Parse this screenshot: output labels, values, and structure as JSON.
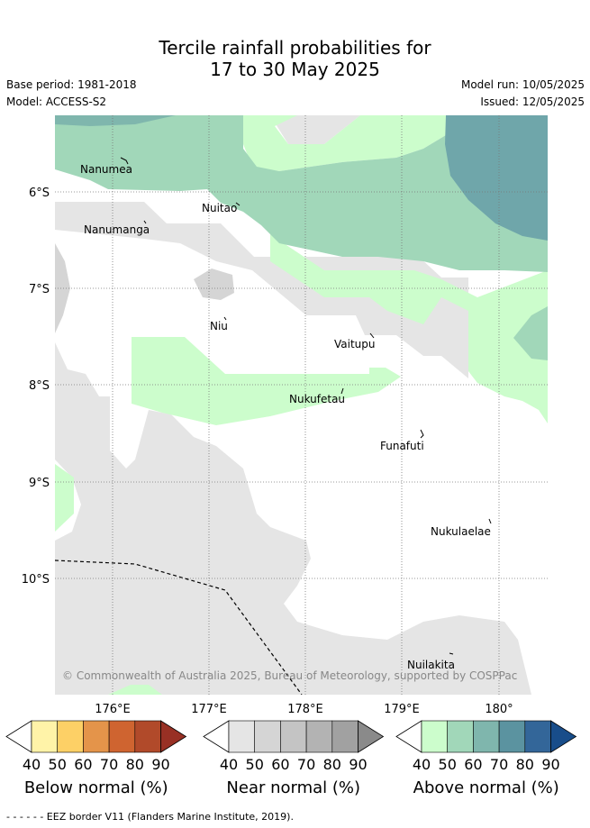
{
  "title_line1": "Tercile rainfall probabilities for",
  "title_line2": "17 to 30 May 2025",
  "meta": {
    "base_period": "Base period: 1981-2018",
    "model": "Model: ACCESS-S2",
    "model_run": "Model run: 10/05/2025",
    "issued": "Issued: 12/05/2025"
  },
  "map": {
    "lat_labels": [
      "6°S",
      "7°S",
      "8°S",
      "9°S",
      "10°S"
    ],
    "lon_labels": [
      "176°E",
      "177°E",
      "178°E",
      "179°E",
      "180°"
    ],
    "places": [
      "Nanumea",
      "Nuitao",
      "Nanumanga",
      "Niu",
      "Vaitupu",
      "Nukufetau",
      "Funafuti",
      "Nukulaelae",
      "Nuilakita"
    ],
    "copyright": "© Commonwealth of Australia 2025, Bureau of Meteorology, supported by COSPPac"
  },
  "legends": [
    {
      "label": "Below normal (%)",
      "ticks": [
        "40",
        "50",
        "60",
        "70",
        "80",
        "90"
      ],
      "colors": [
        "#fff3a8",
        "#fdd066",
        "#e4944a",
        "#cf6430",
        "#b14a2a",
        "#983024"
      ]
    },
    {
      "label": "Near normal (%)",
      "ticks": [
        "40",
        "50",
        "60",
        "70",
        "80",
        "90"
      ],
      "colors": [
        "#e5e5e5",
        "#d5d5d5",
        "#c4c4c4",
        "#b3b3b3",
        "#a1a1a1",
        "#8a8a8a"
      ]
    },
    {
      "label": "Above normal (%)",
      "ticks": [
        "40",
        "50",
        "60",
        "70",
        "80",
        "90"
      ],
      "colors": [
        "#ccfdcc",
        "#a1d7b9",
        "#7fb6ad",
        "#5b93a0",
        "#336699",
        "#184d8a"
      ]
    }
  ],
  "footer": "- -  - -  - - EEZ border V11 (Flanders Marine Institute, 2019)."
}
